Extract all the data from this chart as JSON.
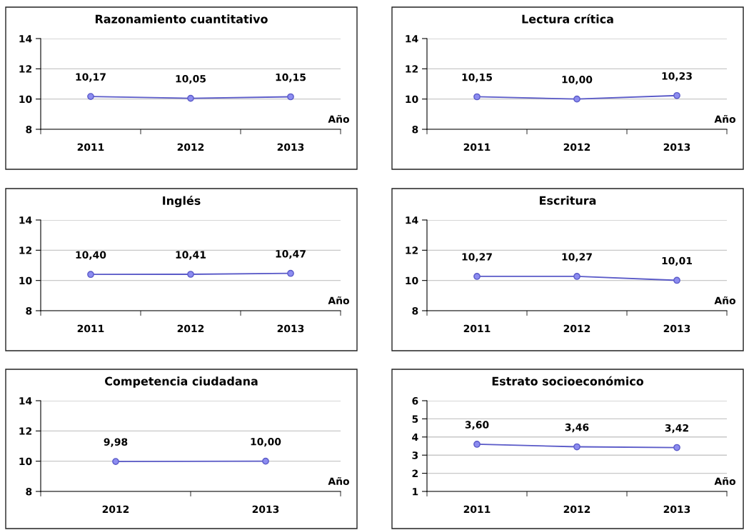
{
  "chart_data": [
    {
      "type": "line",
      "title": "Razonamiento cuantitativo",
      "xlabel": "Año",
      "categories": [
        "2011",
        "2012",
        "2013"
      ],
      "series": [
        {
          "color": "#5a5ac8",
          "values": [
            10.17,
            10.05,
            10.15
          ],
          "value_labels": [
            "10,17",
            "10,05",
            "10,15"
          ]
        }
      ],
      "ylim": [
        8,
        14
      ],
      "yticks": [
        8,
        10,
        12,
        14
      ],
      "grid": "y",
      "marker": "circle",
      "line_style": "solid"
    },
    {
      "type": "line",
      "title": "Lectura crítica",
      "xlabel": "Año",
      "categories": [
        "2011",
        "2012",
        "2013"
      ],
      "series": [
        {
          "color": "#5a5ac8",
          "values": [
            10.15,
            10.0,
            10.23
          ],
          "value_labels": [
            "10,15",
            "10,00",
            "10,23"
          ]
        }
      ],
      "ylim": [
        8,
        14
      ],
      "yticks": [
        8,
        10,
        12,
        14
      ],
      "grid": "y",
      "marker": "circle",
      "line_style": "solid"
    },
    {
      "type": "line",
      "title": "Inglés",
      "xlabel": "Año",
      "categories": [
        "2011",
        "2012",
        "2013"
      ],
      "series": [
        {
          "color": "#5a5ac8",
          "values": [
            10.4,
            10.41,
            10.47
          ],
          "value_labels": [
            "10,40",
            "10,41",
            "10,47"
          ]
        }
      ],
      "ylim": [
        8,
        14
      ],
      "yticks": [
        8,
        10,
        12,
        14
      ],
      "grid": "y",
      "marker": "circle",
      "line_style": "solid"
    },
    {
      "type": "line",
      "title": "Escritura",
      "xlabel": "Año",
      "categories": [
        "2011",
        "2012",
        "2013"
      ],
      "series": [
        {
          "color": "#5a5ac8",
          "values": [
            10.27,
            10.27,
            10.01
          ],
          "value_labels": [
            "10,27",
            "10,27",
            "10,01"
          ]
        }
      ],
      "ylim": [
        8,
        14
      ],
      "yticks": [
        8,
        10,
        12,
        14
      ],
      "grid": "y",
      "marker": "circle",
      "line_style": "solid"
    },
    {
      "type": "line",
      "title": "Competencia ciudadana",
      "xlabel": "Año",
      "categories": [
        "2012",
        "2013"
      ],
      "series": [
        {
          "color": "#5a5ac8",
          "values": [
            9.98,
            10.0
          ],
          "value_labels": [
            "9,98",
            "10,00"
          ]
        }
      ],
      "ylim": [
        8,
        14
      ],
      "yticks": [
        8,
        10,
        12,
        14
      ],
      "grid": "y",
      "marker": "circle",
      "line_style": "solid"
    },
    {
      "type": "line",
      "title": "Estrato socioeconómico",
      "xlabel": "Año",
      "categories": [
        "2011",
        "2012",
        "2013"
      ],
      "series": [
        {
          "color": "#5a5ac8",
          "values": [
            3.6,
            3.46,
            3.42
          ],
          "value_labels": [
            "3,60",
            "3,46",
            "3,42"
          ]
        }
      ],
      "ylim": [
        1,
        6
      ],
      "yticks": [
        1,
        2,
        3,
        4,
        5,
        6
      ],
      "grid": "y",
      "marker": "circle",
      "line_style": "solid"
    }
  ]
}
